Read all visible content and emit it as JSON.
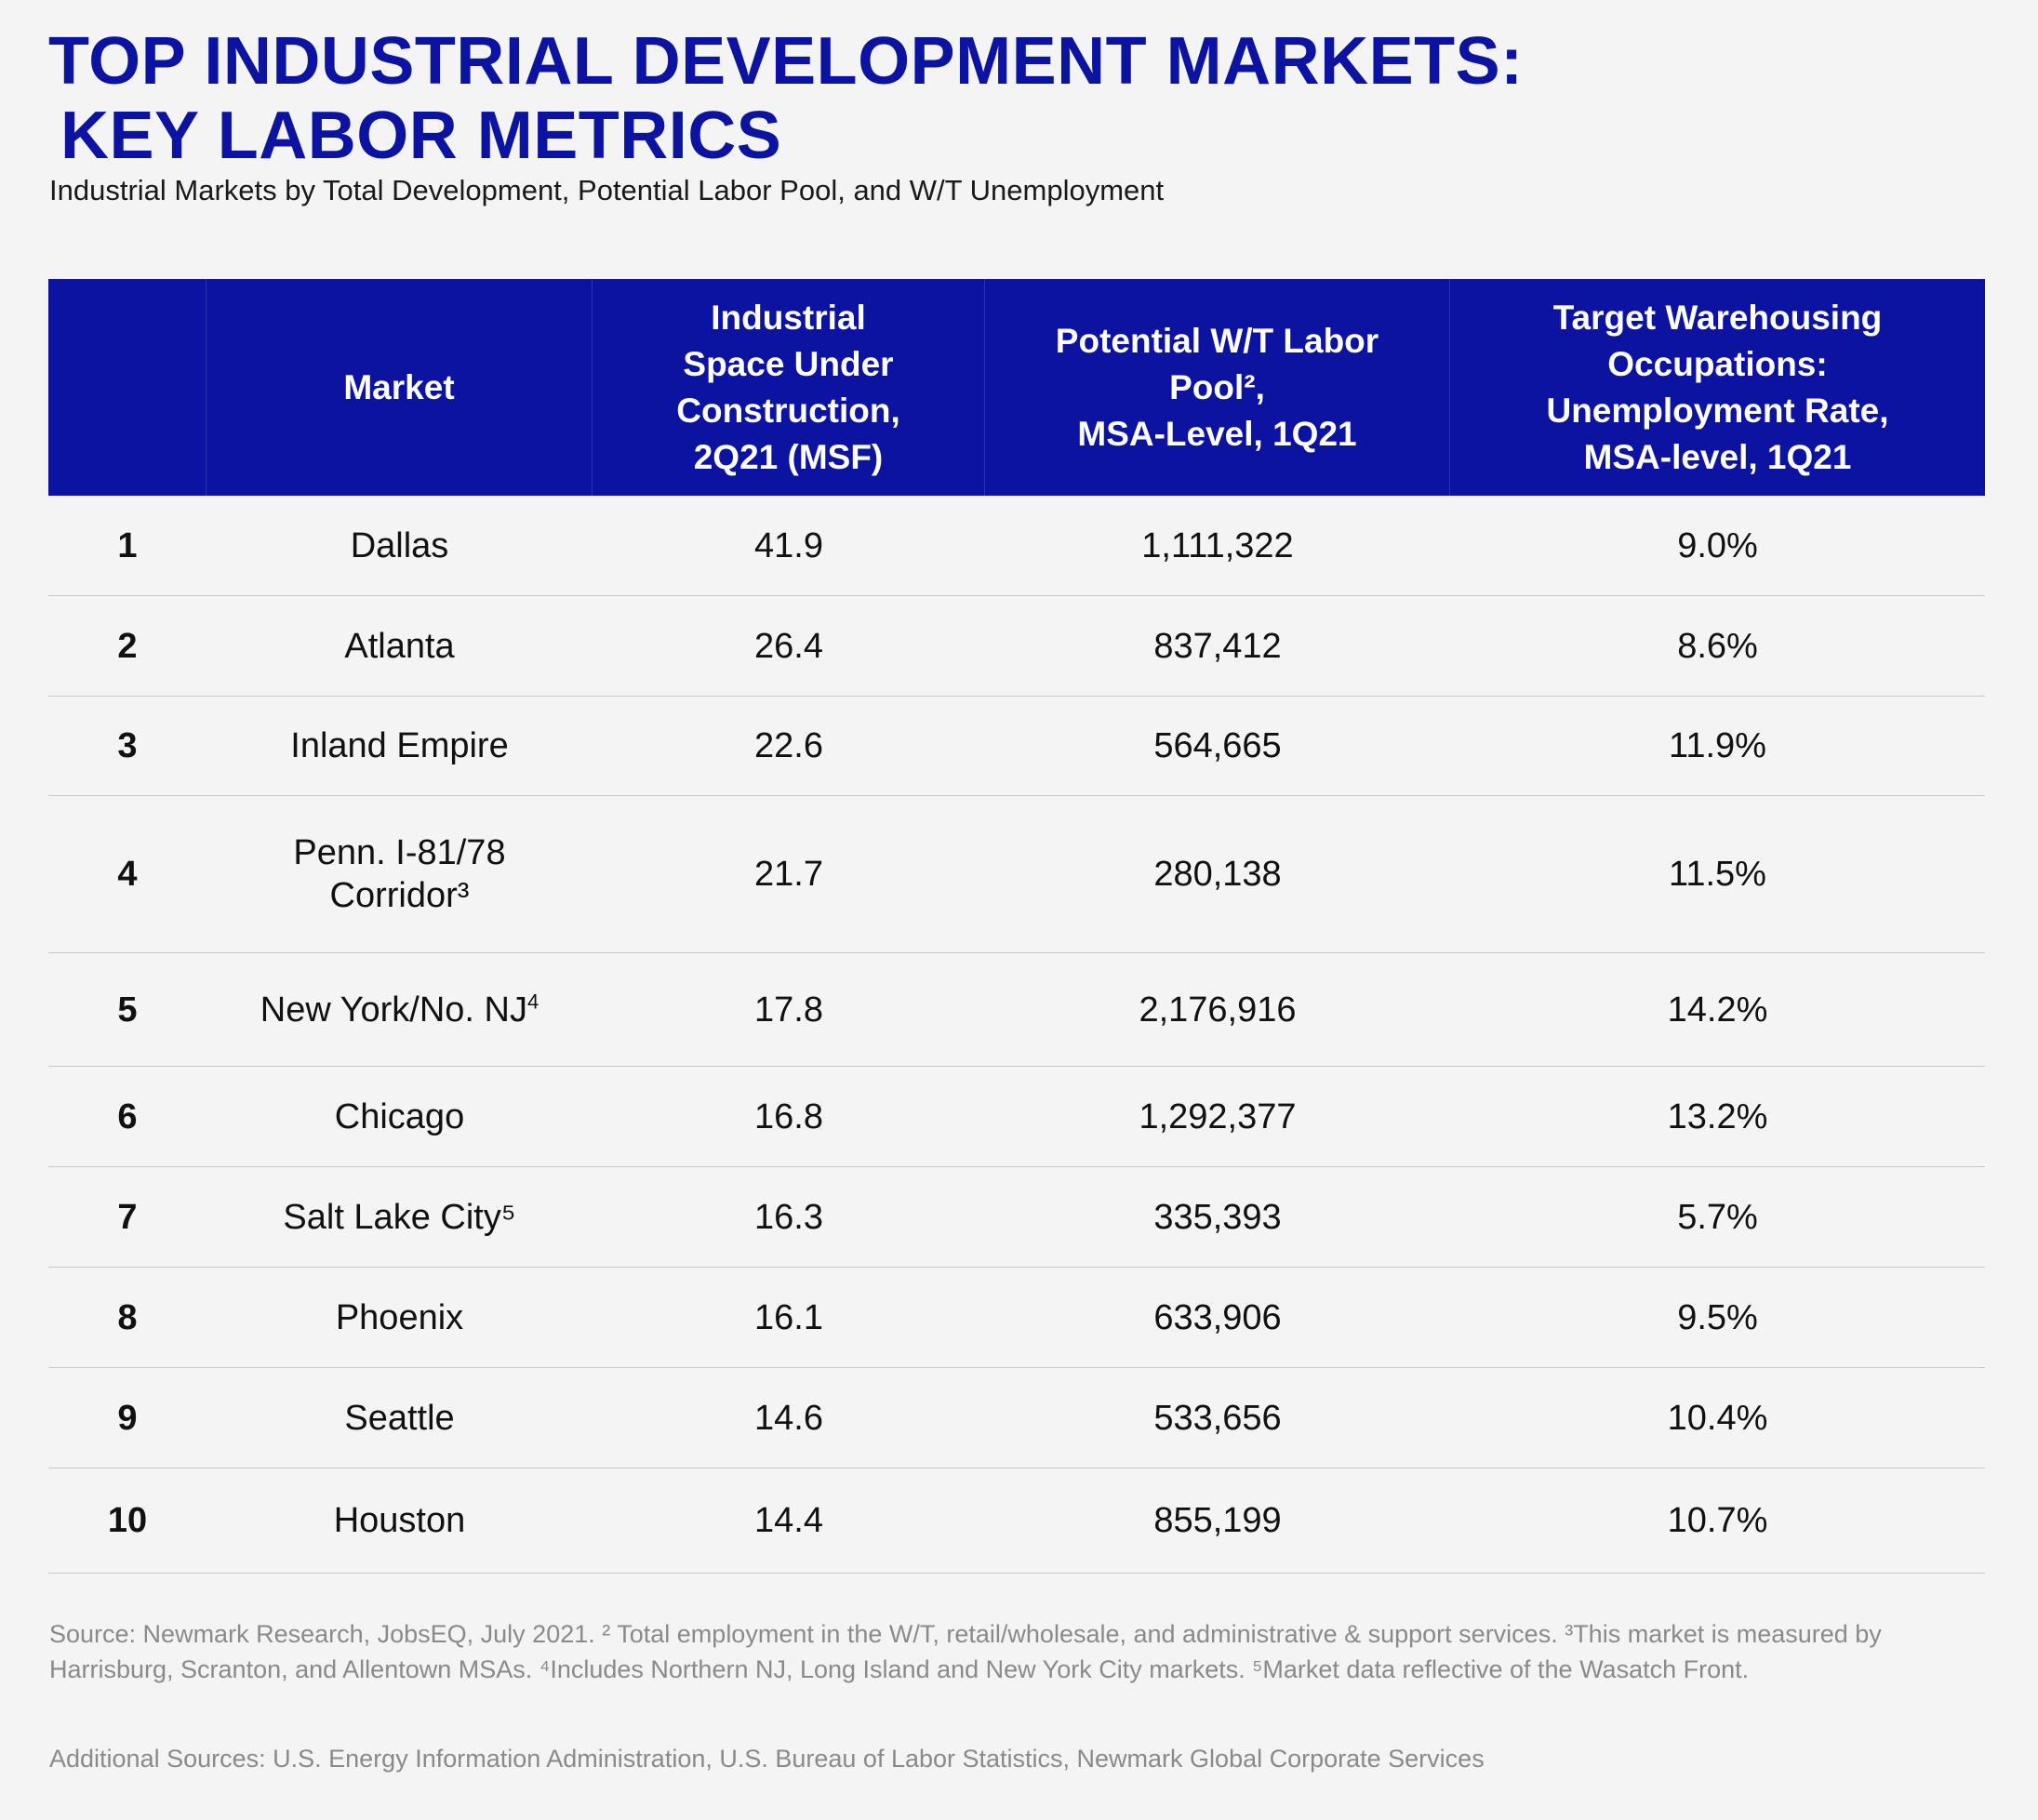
{
  "title_line1": "TOP INDUSTRIAL DEVELOPMENT MARKETS:",
  "title_line2": "KEY LABOR METRICS",
  "subtitle": "Industrial Markets by Total Development, Potential Labor Pool, and W/T Unemployment",
  "colors": {
    "accent": "#0b13a0",
    "header_text": "#ffffff",
    "footnote": "#8a8a8a"
  },
  "headers": [
    "",
    "Market",
    "Industrial\nSpace Under\nConstruction,\n2Q21 (MSF)",
    "Potential W/T Labor\nPool²,\nMSA-Level, 1Q21",
    "Target Warehousing\nOccupations:\nUnemployment Rate,\nMSA-level, 1Q21"
  ],
  "rows": [
    {
      "rank": "1",
      "market": "Dallas",
      "sup": "",
      "space": "41.9",
      "pool": "1,111,322",
      "unemp": "9.0%"
    },
    {
      "rank": "2",
      "market": "Atlanta",
      "sup": "",
      "space": "26.4",
      "pool": "837,412",
      "unemp": "8.6%"
    },
    {
      "rank": "3",
      "market": "Inland Empire",
      "sup": "",
      "space": "22.6",
      "pool": "564,665",
      "unemp": "11.9%"
    },
    {
      "rank": "4",
      "market": "Penn. I-81/78\nCorridor³",
      "sup": "",
      "space": "21.7",
      "pool": "280,138",
      "unemp": "11.5%"
    },
    {
      "rank": "5",
      "market": "New York/No. NJ",
      "sup": "4",
      "space": "17.8",
      "pool": "2,176,916",
      "unemp": "14.2%"
    },
    {
      "rank": "6",
      "market": "Chicago",
      "sup": "",
      "space": "16.8",
      "pool": "1,292,377",
      "unemp": "13.2%"
    },
    {
      "rank": "7",
      "market": "Salt Lake City⁵",
      "sup": "",
      "space": "16.3",
      "pool": "335,393",
      "unemp": "5.7%"
    },
    {
      "rank": "8",
      "market": "Phoenix",
      "sup": "",
      "space": "16.1",
      "pool": "633,906",
      "unemp": "9.5%"
    },
    {
      "rank": "9",
      "market": "Seattle",
      "sup": "",
      "space": "14.6",
      "pool": "533,656",
      "unemp": "10.4%"
    },
    {
      "rank": "10",
      "market": "Houston",
      "sup": "",
      "space": "14.4",
      "pool": "855,199",
      "unemp": "10.7%"
    }
  ],
  "footnote": "Source: Newmark Research, JobsEQ, July 2021. ² Total employment in the W/T, retail/wholesale, and administrative & support services. ³This market is measured by Harrisburg, Scranton, and Allentown MSAs. ⁴Includes Northern NJ, Long Island and New York City markets. ⁵Market data reflective of the Wasatch Front.",
  "additional_sources": "Additional Sources: U.S. Energy Information Administration, U.S. Bureau of Labor Statistics, Newmark Global Corporate Services",
  "chart_data": {
    "type": "table",
    "title": "TOP INDUSTRIAL DEVELOPMENT MARKETS: KEY LABOR METRICS",
    "subtitle": "Industrial Markets by Total Development, Potential Labor Pool, and W/T Unemployment",
    "columns": [
      "",
      "Market",
      "Industrial Space Under Construction, 2Q21 (MSF)",
      "Potential W/T Labor Pool², MSA-Level, 1Q21",
      "Target Warehousing Occupations: Unemployment Rate, MSA-level, 1Q21"
    ],
    "rows": [
      [
        1,
        "Dallas",
        41.9,
        1111322,
        9.0
      ],
      [
        2,
        "Atlanta",
        26.4,
        837412,
        8.6
      ],
      [
        3,
        "Inland Empire",
        22.6,
        564665,
        11.9
      ],
      [
        4,
        "Penn. I-81/78 Corridor³",
        21.7,
        280138,
        11.5
      ],
      [
        5,
        "New York/No. NJ⁴",
        17.8,
        2176916,
        14.2
      ],
      [
        6,
        "Chicago",
        16.8,
        1292377,
        13.2
      ],
      [
        7,
        "Salt Lake City⁵",
        16.3,
        335393,
        5.7
      ],
      [
        8,
        "Phoenix",
        16.1,
        633906,
        9.5
      ],
      [
        9,
        "Seattle",
        14.6,
        533656,
        10.4
      ],
      [
        10,
        "Houston",
        14.4,
        855199,
        10.7
      ]
    ]
  }
}
